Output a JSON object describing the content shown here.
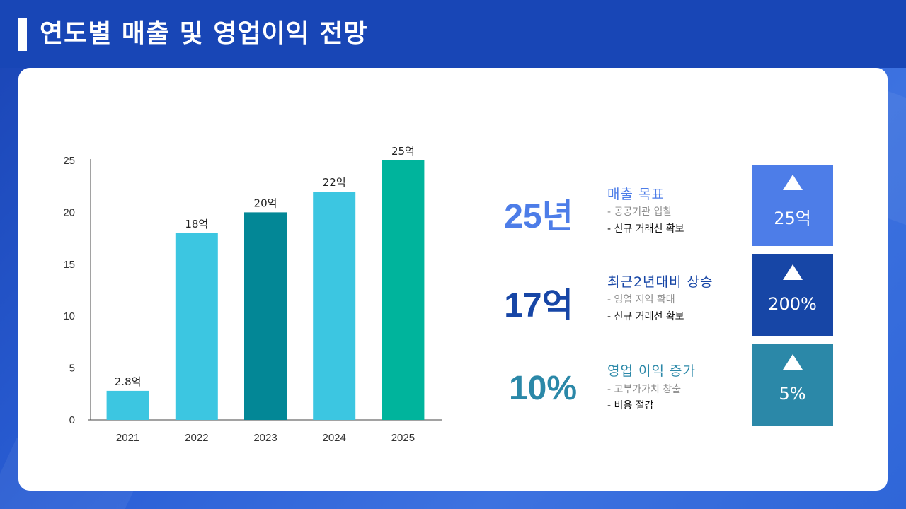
{
  "title": "연도별 매출 및 영업이익 전망",
  "colors": {
    "light_cyan": "#3cc6e1",
    "dark_teal": "#038796",
    "green_teal": "#00b49c",
    "blue": "#4d7de8",
    "navy": "#1746a6",
    "steel_teal": "#2b88a8"
  },
  "chart_data": {
    "type": "bar",
    "categories": [
      "2021",
      "2022",
      "2023",
      "2024",
      "2025"
    ],
    "values": [
      2.8,
      18,
      20,
      22,
      25
    ],
    "data_labels": [
      "2.8억",
      "18억",
      "20억",
      "22억",
      "25억"
    ],
    "bar_colors": [
      "#3cc6e1",
      "#3cc6e1",
      "#038796",
      "#3cc6e1",
      "#00b49c"
    ],
    "y_ticks": [
      "0",
      "5",
      "10",
      "15",
      "20",
      "25"
    ],
    "ylim": [
      0,
      25
    ],
    "grid": false,
    "legend": false
  },
  "stats": [
    {
      "big": "25년",
      "color": "#4d7de8",
      "head": "매출 목표",
      "head_color": "#4d7de8",
      "line1": "- 공공기관 입찰",
      "line2": "- 신규 거래선 확보",
      "box_value": "25억",
      "box_color": "#4d7de8"
    },
    {
      "big": "17억",
      "color": "#1746a6",
      "head": "최근2년대비 상승",
      "head_color": "#1746a6",
      "line1": "- 영업 지역 확대",
      "line2": "- 신규 거래선 확보",
      "box_value": "200%",
      "box_color": "#1746a6"
    },
    {
      "big": "10%",
      "color": "#2b88a8",
      "head": "영업 이익 증가",
      "head_color": "#2b88a8",
      "line1": "- 고부가가치 창출",
      "line2": "- 비용 절감",
      "box_value": "5%",
      "box_color": "#2b88a8"
    }
  ]
}
